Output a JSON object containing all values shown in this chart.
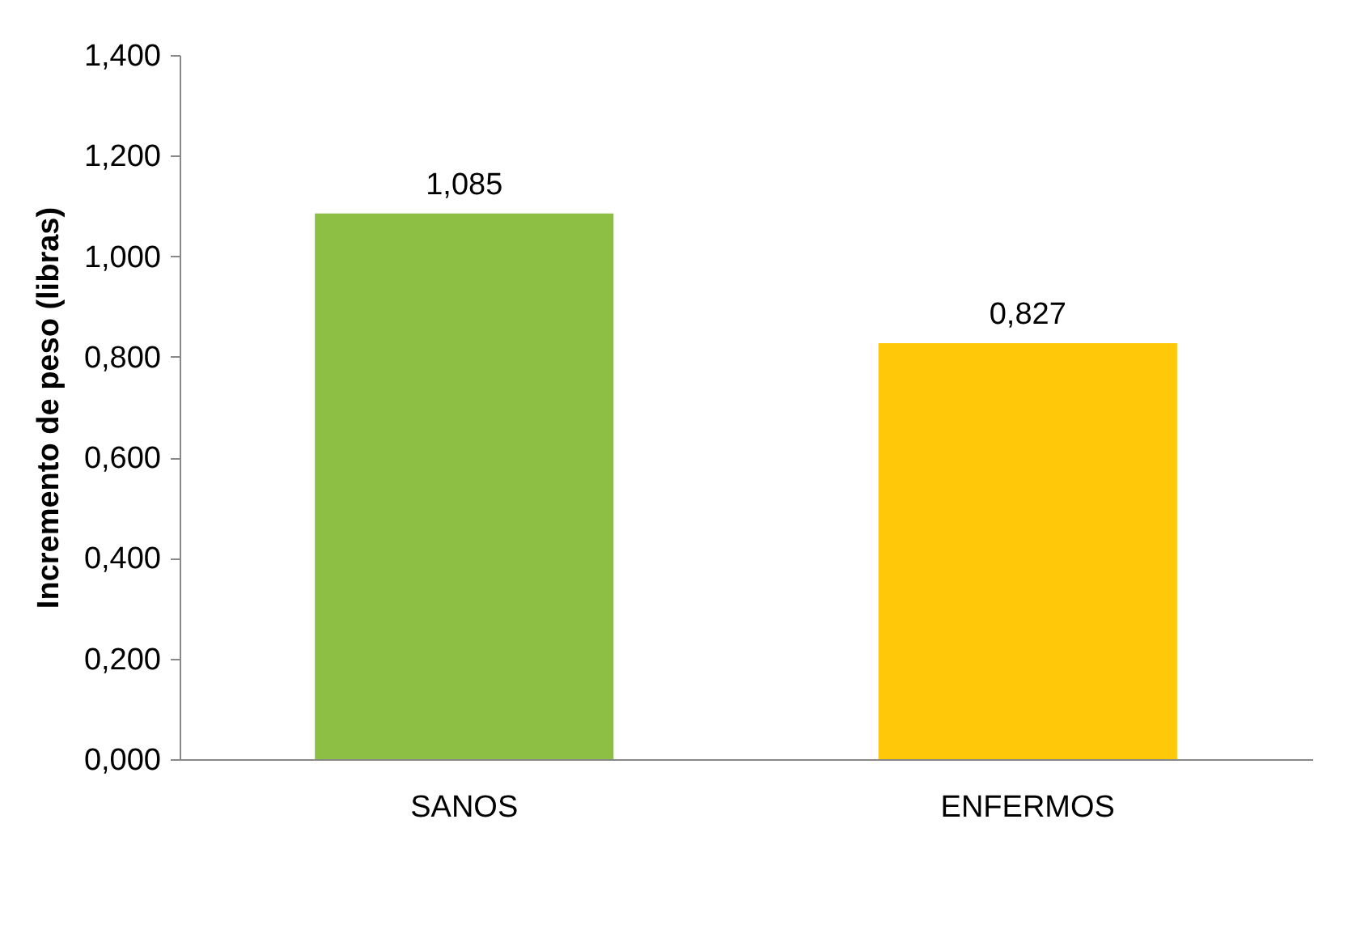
{
  "chart_data": {
    "type": "bar",
    "ylabel": "Incremento de peso (libras)",
    "categories": [
      "SANOS",
      "ENFERMOS"
    ],
    "values": [
      1.085,
      0.827
    ],
    "colors": [
      "#8cbf44",
      "#ffc808"
    ],
    "value_labels": [
      "1,085",
      "0,827"
    ],
    "ylim": [
      0,
      1.4
    ],
    "yticks": [
      {
        "value": 0,
        "label": "0,000"
      },
      {
        "value": 0.2,
        "label": "0,200"
      },
      {
        "value": 0.4,
        "label": "0,400"
      },
      {
        "value": 0.6,
        "label": "0,600"
      },
      {
        "value": 0.8,
        "label": "0,800"
      },
      {
        "value": 1,
        "label": "1,000"
      },
      {
        "value": 1.2,
        "label": "1,200"
      },
      {
        "value": 1.4,
        "label": "1,400"
      }
    ],
    "grid": false
  }
}
